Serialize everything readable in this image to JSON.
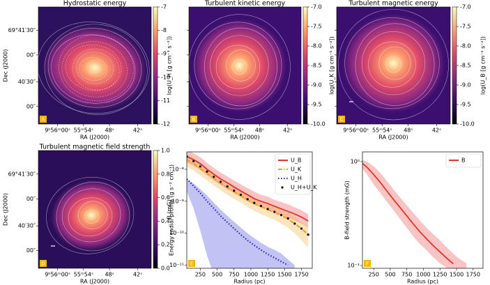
{
  "chart_data": [
    {
      "type": "image",
      "panel": "A",
      "title": "Hydrostatic energy",
      "xlabel": "RA (J2000)",
      "ylabel": "Dec (J2000)",
      "xtick_labels": [
        "9ʰ56ᵐ00ˢ",
        "55ᵐ54ˢ",
        "48ˢ",
        "42ˢ"
      ],
      "ytick_labels": [
        "69°41′30″",
        "00″",
        "40′30″",
        "00″"
      ],
      "colormap": "magma",
      "colorbar_label": "log(U_H [g cm⁻¹ s⁻²])",
      "clim": [
        -12,
        -7
      ],
      "cticks": [
        -7,
        -8,
        -9,
        -10,
        -11,
        -12
      ]
    },
    {
      "type": "image",
      "panel": "B",
      "title": "Turbulent kinetic energy",
      "xlabel": "RA (J2000)",
      "xtick_labels": [
        "9ʰ56ᵐ00ˢ",
        "55ᵐ54ˢ",
        "48ˢ",
        "42ˢ"
      ],
      "colormap": "magma",
      "colorbar_label": "log(U_K [g cm⁻¹ s⁻²])",
      "clim": [
        -10,
        -7
      ],
      "cticks": [
        {
          "value": -7,
          "label": "-7.0"
        },
        -7.5,
        {
          "value": -8,
          "label": "-8.0"
        },
        -8.5,
        {
          "value": -9,
          "label": "-9.0"
        },
        -9.5,
        {
          "value": -10,
          "label": "-10.0"
        }
      ]
    },
    {
      "type": "image",
      "panel": "C",
      "title": "Turbulent magnetic energy",
      "xlabel": "RA (J2000)",
      "xtick_labels": [
        "9ʰ56ᵐ00ˢ",
        "55ᵐ54ˢ",
        "48ˢ",
        "42ˢ"
      ],
      "colormap": "magma",
      "colorbar_label": "log(U_B [g cm⁻¹ s⁻²])",
      "clim": [
        -10,
        -7
      ],
      "cticks": [
        {
          "value": -7,
          "label": "-7.0"
        },
        -7.5,
        {
          "value": -8,
          "label": "-8.0"
        },
        -8.5,
        {
          "value": -9,
          "label": "-9.0"
        },
        -9.5,
        {
          "value": -10,
          "label": "-10.0"
        }
      ]
    },
    {
      "type": "image",
      "panel": "D",
      "title": "Turbulent magnetic field strength",
      "xlabel": "RA (J2000)",
      "ylabel": "Dec (J2000)",
      "xtick_labels": [
        "9ʰ56ᵐ00ˢ",
        "55ᵐ54ˢ",
        "48ˢ",
        "42ˢ"
      ],
      "ytick_labels": [
        "69°41′30″",
        "00″",
        "40′30″",
        "00″"
      ],
      "colormap": "magma",
      "colorbar_label": "B (mG)",
      "clim": [
        0,
        1
      ],
      "cticks": [
        {
          "value": 0,
          "label": "0.0"
        },
        0.2,
        0.4,
        0.6,
        0.8,
        {
          "value": 1,
          "label": "1.0"
        }
      ]
    },
    {
      "type": "line",
      "panel": "E",
      "xlabel": "Radius (pc)",
      "ylabel": "Energy radial profile (g s⁻² cm⁻¹)",
      "log_y": true,
      "legend": "upper right",
      "xlim": [
        50,
        1910
      ],
      "xticks": [
        250,
        500,
        750,
        1000,
        1250,
        1500,
        1750
      ],
      "ylim": [
        8e-12,
        3.5e-08
      ],
      "yticks": [
        {
          "value": 1e-11,
          "label": "10⁻¹¹"
        },
        {
          "value": 1e-10,
          "label": "10⁻¹⁰"
        },
        {
          "value": 1e-09,
          "label": "10⁻⁹"
        },
        {
          "value": 1e-08,
          "label": "10⁻⁸"
        }
      ],
      "x": [
        50,
        150,
        250,
        350,
        450,
        550,
        650,
        750,
        850,
        950,
        1050,
        1150,
        1250,
        1350,
        1450,
        1550,
        1650,
        1750,
        1850
      ],
      "series": [
        {
          "name": "U_B",
          "color": "#e8302a",
          "style": "solid",
          "values": [
            2.5e-08,
            2e-08,
            1.5e-08,
            1e-08,
            7e-09,
            5e-09,
            3.8e-09,
            2.8e-09,
            2.1e-09,
            1.6e-09,
            1.2e-09,
            1e-09,
            8.5e-10,
            7e-10,
            5.8e-10,
            4.8e-10,
            4e-10,
            3.2e-10,
            2.4e-10
          ],
          "upper": [
            4e-08,
            3.2e-08,
            2.4e-08,
            1.6e-08,
            1.1e-08,
            8e-09,
            6e-09,
            4.5e-09,
            3.4e-09,
            2.6e-09,
            2e-09,
            1.6e-09,
            1.4e-09,
            1.1e-09,
            9.5e-10,
            8e-10,
            6.5e-10,
            5.2e-10,
            4e-10
          ],
          "lower": [
            1.6e-08,
            1.3e-08,
            9.5e-09,
            6.5e-09,
            4.5e-09,
            3.2e-09,
            2.4e-09,
            1.8e-09,
            1.35e-09,
            1e-09,
            7.8e-10,
            6.5e-10,
            5.5e-10,
            4.5e-10,
            3.7e-10,
            3e-10,
            2.5e-10,
            2e-10,
            1.5e-10
          ]
        },
        {
          "name": "U_K",
          "color": "#f0a020",
          "style": "dashdot",
          "values": [
            2e-08,
            1.5e-08,
            1.05e-08,
            7.5e-09,
            5.2e-09,
            3.7e-09,
            2.7e-09,
            2e-09,
            1.5e-09,
            1.1e-09,
            8.5e-10,
            6.8e-10,
            5.5e-10,
            4.5e-10,
            3.6e-10,
            2.8e-10,
            2e-10,
            1.4e-10,
            9e-11
          ],
          "upper": [
            3e-08,
            2.3e-08,
            1.6e-08,
            1.1e-08,
            7.8e-09,
            5.5e-09,
            4e-09,
            3e-09,
            2.2e-09,
            1.7e-09,
            1.3e-09,
            1e-09,
            8.3e-10,
            6.8e-10,
            5.4e-10,
            4.3e-10,
            3.2e-10,
            2.3e-10,
            1.6e-10
          ],
          "lower": [
            1.2e-08,
            9e-09,
            6.3e-09,
            4.5e-09,
            3.1e-09,
            2.2e-09,
            1.6e-09,
            1.2e-09,
            9e-10,
            6.6e-10,
            5e-10,
            4e-10,
            3.2e-10,
            2.6e-10,
            2e-10,
            1.5e-10,
            1e-10,
            6e-11,
            3.5e-11
          ]
        },
        {
          "name": "U_H",
          "color": "#2424d8",
          "style": "dotted",
          "values": [
            5e-09,
            3e-09,
            1.8e-09,
            1e-09,
            6e-10,
            3.5e-10,
            2.2e-10,
            1.4e-10,
            9e-11,
            6e-11,
            4.2e-11,
            3e-11,
            2.2e-11,
            1.7e-11,
            1.3e-11,
            1e-11,
            null,
            null,
            null
          ],
          "upper": [
            5e-09,
            3.6e-09,
            2.4e-09,
            1.5e-09,
            9e-10,
            5.5e-10,
            3.5e-10,
            2.3e-10,
            1.5e-10,
            1e-10,
            7e-11,
            5e-11,
            3.8e-11,
            3e-11,
            2.3e-11,
            1.5e-11,
            1e-11,
            null,
            null
          ],
          "lower": [
            2e-09,
            6e-10,
            1.2e-10,
            2e-11,
            5e-12,
            5e-12,
            5e-12,
            5e-12,
            5e-12,
            5e-12,
            5e-12,
            5e-12,
            5e-12,
            5e-12,
            5e-12,
            5e-12,
            5e-12,
            null,
            null
          ]
        },
        {
          "name": "U_H+U_K",
          "color": "#000000",
          "style": "dots",
          "values": [
            2.5e-08,
            1.8e-08,
            1.23e-08,
            8.5e-09,
            5.8e-09,
            4.05e-09,
            2.9e-09,
            2.15e-09,
            1.6e-09,
            1.16e-09,
            8.9e-10,
            7.1e-10,
            5.7e-10,
            4.65e-10,
            3.7e-10,
            2.9e-10,
            2e-10,
            1.4e-10,
            9e-11
          ]
        }
      ]
    },
    {
      "type": "line",
      "panel": "F",
      "xlabel": "Radius (pc)",
      "ylabel": "B-field strength (mG)",
      "log_y": true,
      "legend": "upper right",
      "xlim": [
        80,
        1900
      ],
      "xticks": [
        250,
        500,
        750,
        1000,
        1250,
        1500,
        1750
      ],
      "ylim": [
        0.094,
        1.24
      ],
      "yticks": [
        {
          "value": 0.1,
          "label": "10⁻¹"
        },
        {
          "value": 1,
          "label": "10⁰"
        }
      ],
      "x": [
        50,
        150,
        250,
        350,
        450,
        550,
        650,
        750,
        850,
        950,
        1050,
        1150,
        1250,
        1350,
        1450,
        1550,
        1650,
        1750,
        1850
      ],
      "series": [
        {
          "name": "B",
          "color": "#e8302a",
          "style": "solid",
          "values": [
            1.0,
            0.88,
            0.75,
            0.63,
            0.52,
            0.43,
            0.36,
            0.3,
            0.25,
            0.21,
            0.18,
            0.155,
            0.135,
            0.118,
            0.104,
            null,
            null,
            null,
            null
          ],
          "upper": [
            1.05,
            1.0,
            0.9,
            0.78,
            0.65,
            0.54,
            0.45,
            0.38,
            0.32,
            0.27,
            0.23,
            0.2,
            0.175,
            0.15,
            0.13,
            0.115,
            0.105,
            null,
            null
          ],
          "lower": [
            0.9,
            0.75,
            0.6,
            0.5,
            0.41,
            0.34,
            0.28,
            0.23,
            0.19,
            0.16,
            0.14,
            0.12,
            0.105,
            0.095,
            0.09,
            0.09,
            0.09,
            null,
            null
          ]
        }
      ]
    }
  ]
}
